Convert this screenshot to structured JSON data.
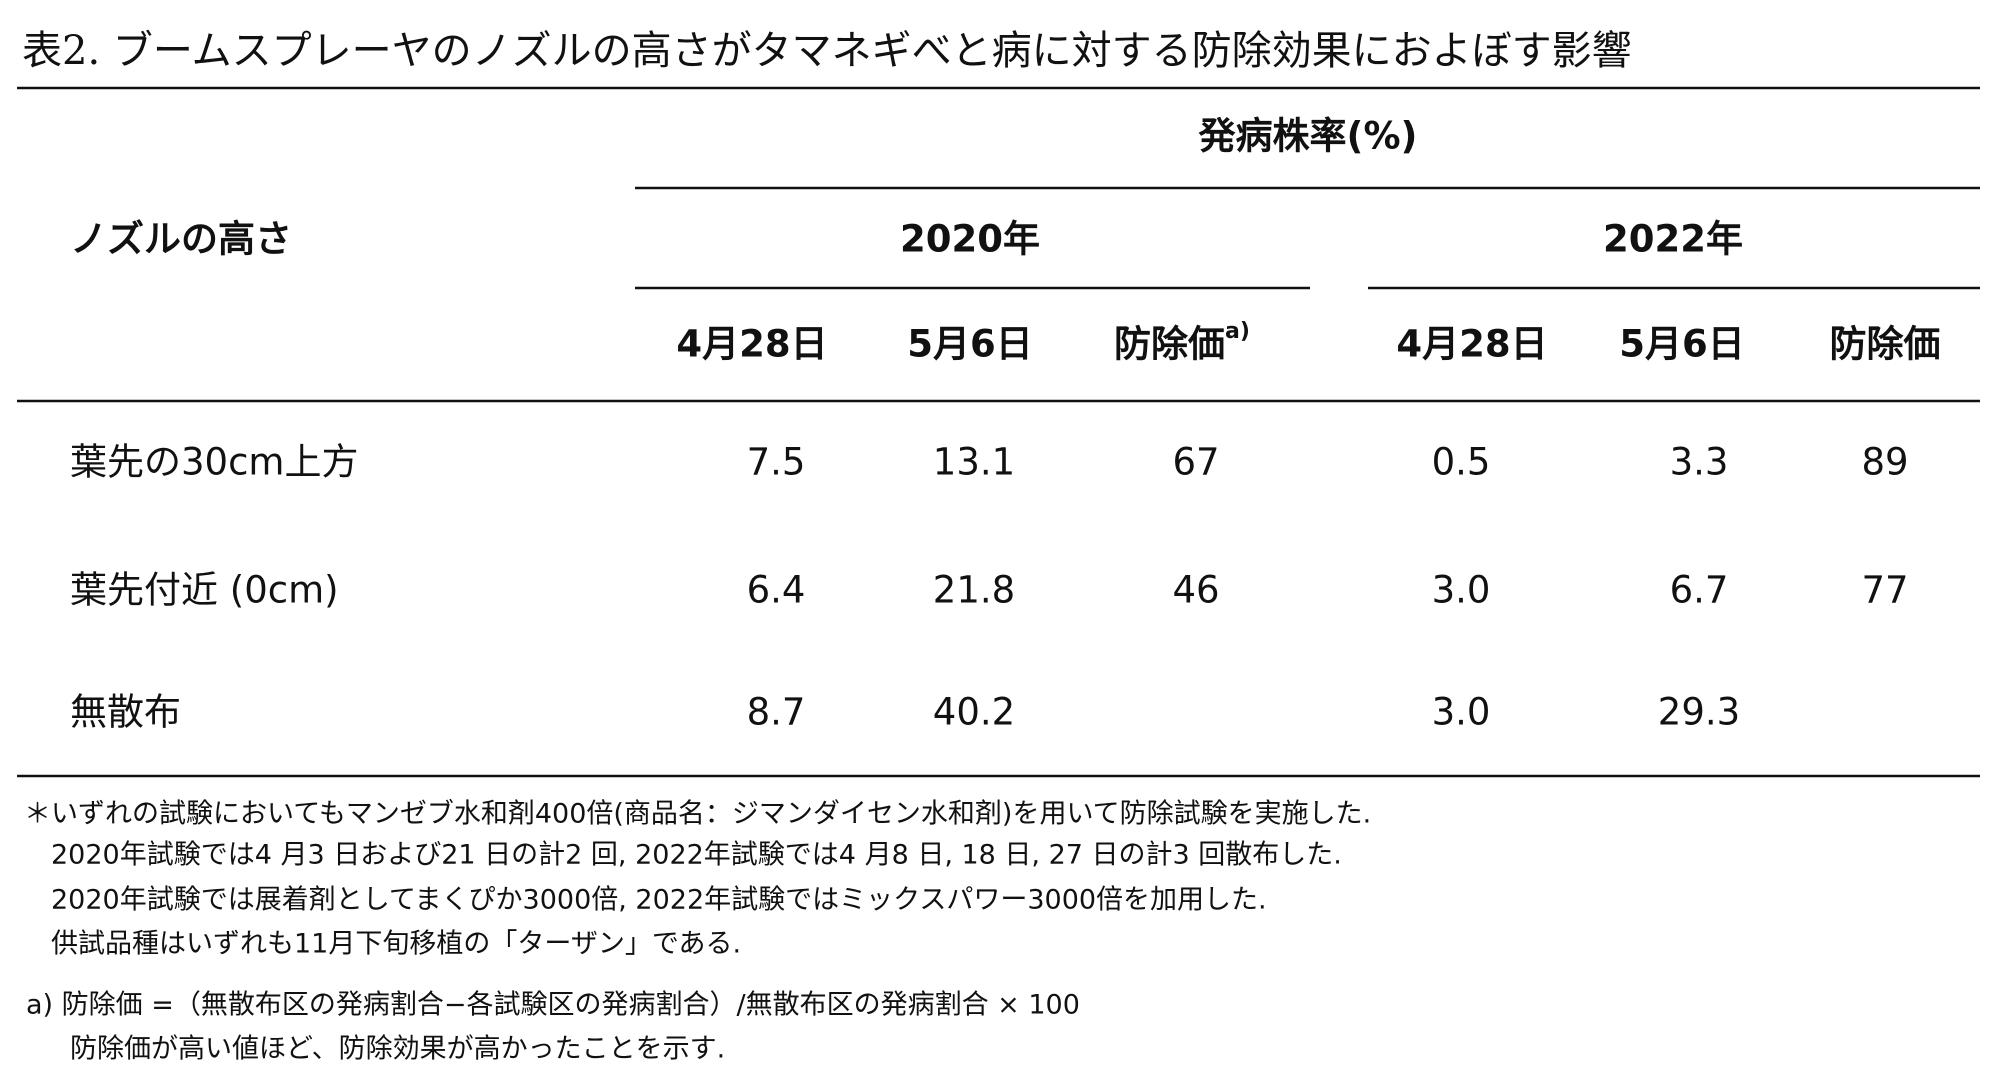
{
  "title": "表2. ブームスプレーヤのノズルの高さがタマネギべと病に対する防除効果におよぼす影響",
  "header": {
    "group_label": "発病株率(%)",
    "row_header": "ノズルの高さ",
    "years": [
      "2020年",
      "2022年"
    ],
    "columns": [
      "4月28日",
      "5月6日",
      "防除価",
      "4月28日",
      "5月6日",
      "防除価"
    ],
    "footnote_marker": "a)"
  },
  "table": {
    "rows": [
      {
        "label": "葉先の30cm上方",
        "cells": [
          "7.5",
          "13.1",
          "67",
          "0.5",
          "3.3",
          "89"
        ]
      },
      {
        "label": "葉先付近 (0cm)",
        "cells": [
          "6.4",
          "21.8",
          "46",
          "3.0",
          "6.7",
          "77"
        ]
      },
      {
        "label": "無散布",
        "cells": [
          "8.7",
          "40.2",
          null,
          "3.0",
          "29.3",
          null
        ]
      }
    ]
  },
  "notes": [
    "＊いずれの試験においてもマンゼブ水和剤400倍(商品名：ジマンダイセン水和剤)を用いて防除試験を実施した.",
    "2020年試験では4 月3 日および21 日の計2 回, 2022年試験では4 月8 日, 18 日, 27 日の計3 回散布した.",
    "2020年試験では展着剤としてまくぴか3000倍, 2022年試験ではミックスパワー3000倍を加用した.",
    "供試品種はいずれも11月下旬移植の「ターザン」である."
  ],
  "footnote_a": [
    "a) 防除価 =（無散布区の発病割合−各試験区の発病割合）/無散布区の発病割合 × 100",
    "防除価が高い値ほど、防除効果が高かったことを示す."
  ]
}
